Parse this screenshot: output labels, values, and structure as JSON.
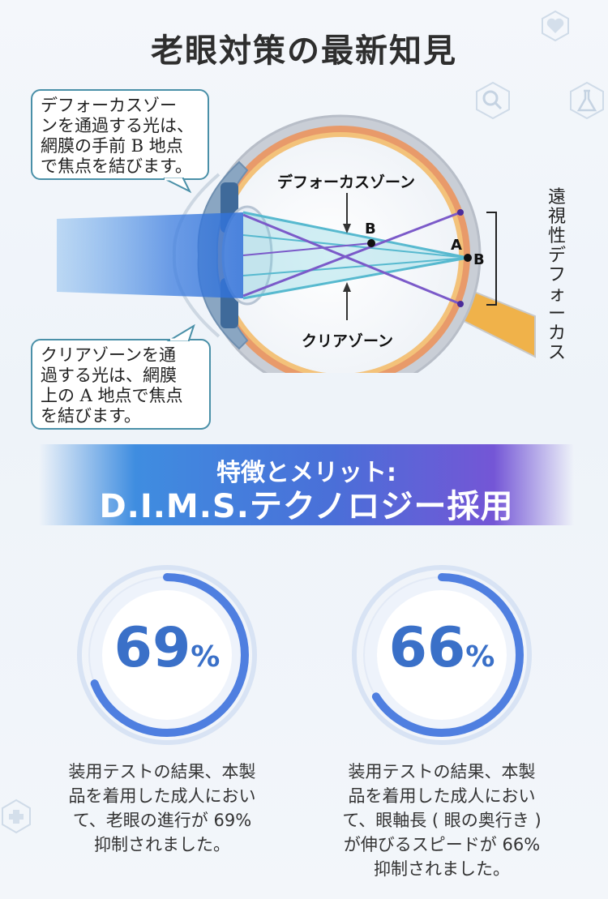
{
  "title": "老眼対策の最新知見",
  "callouts": {
    "defocus": [
      "デフォーカスゾー",
      "ンを通過する光は、",
      "網膜の手前 B 地点",
      "で焦点を結びます。"
    ],
    "clear": [
      "クリアゾーンを通",
      "過する光は、網膜",
      "上の A 地点で焦点",
      "を結びます。"
    ]
  },
  "diagram": {
    "defocus_zone_label": "デフォーカスゾーン",
    "clear_zone_label": "クリアゾーン",
    "point_b_label": "B",
    "point_a_label": "A",
    "point_b2_label": "B",
    "vertical_label": [
      "遠",
      "視",
      "性",
      "デ",
      "フ",
      "ォ",
      "ー",
      "カ",
      "ス"
    ]
  },
  "banner": {
    "subtitle": "特徴とメリット:",
    "headline": "D.I.M.S.テクノロジー採用"
  },
  "stats": [
    {
      "number": "69",
      "unit": "%",
      "fraction": 0.69,
      "description": [
        "装用テストの結果、本製",
        "品を着用した成人におい",
        "て、老眼の進行が 69%",
        "抑制されました。"
      ]
    },
    {
      "number": "66",
      "unit": "%",
      "fraction": 0.66,
      "description": [
        "装用テストの結果、本製",
        "品を着用した成人におい",
        "て、眼軸長 ( 眼の奥行き )",
        "が伸びるスピードが 66%",
        "抑制されました。"
      ]
    }
  ],
  "icons": [
    "heart-pulse-icon",
    "magnifier-icon",
    "flask-icon",
    "medical-cross-icon"
  ],
  "colors": {
    "accent_blue": "#3f8de0",
    "accent_purple": "#7456d6",
    "callout_border": "#4a90a8",
    "percent_text": "#3a70c8"
  }
}
